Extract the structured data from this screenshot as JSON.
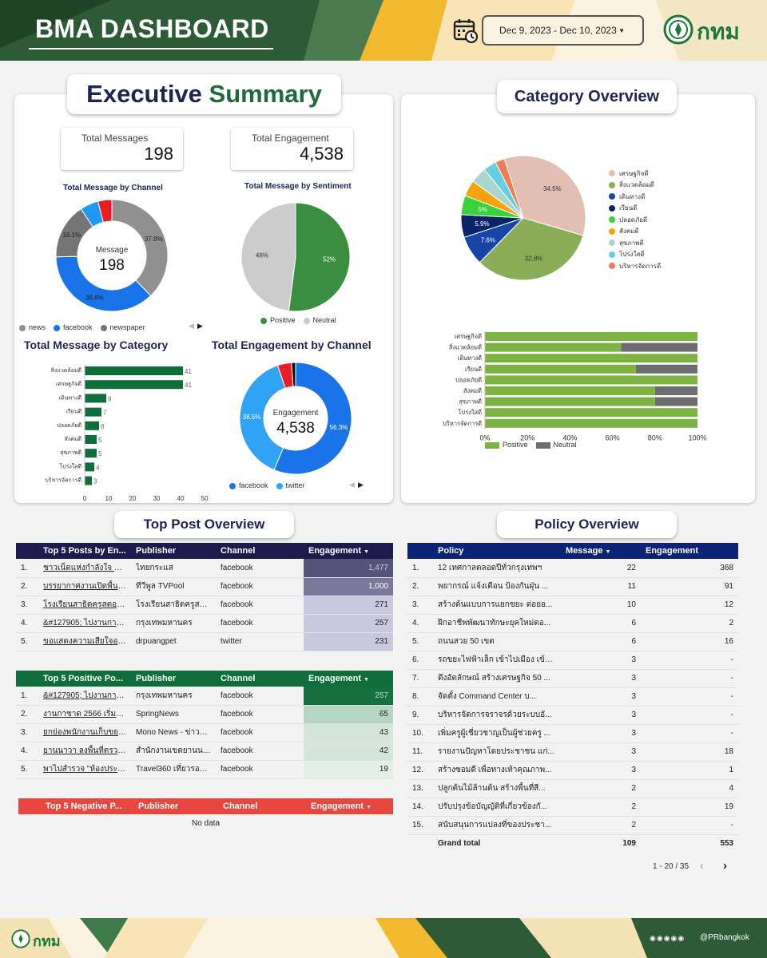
{
  "header": {
    "title": "BMA DASHBOARD",
    "date_range": "Dec 9, 2023 - Dec 10, 2023",
    "logo_text": "กทม"
  },
  "executive": {
    "title_1": "Executive",
    "title_2": "Summary",
    "total_messages_label": "Total Messages",
    "total_messages": "198",
    "total_engagement_label": "Total Engagement",
    "total_engagement": "4,538",
    "channel_chart": {
      "title": "Total Message by Channel",
      "center_label": "Message",
      "center_value": "198",
      "slices": [
        {
          "name": "newspaper",
          "percent": 37.8,
          "label": "37.8%",
          "color": "#909090"
        },
        {
          "name": "facebook",
          "percent": 36.8,
          "label": "36.8%",
          "color": "#1a73e8"
        },
        {
          "name": "news",
          "percent": 16.1,
          "label": "16.1%",
          "color": "#757575"
        },
        {
          "name": "other",
          "percent": 5.3,
          "label": "",
          "color": "#1e9af5"
        },
        {
          "name": "other2",
          "percent": 4.0,
          "label": "",
          "color": "#ea1c24"
        }
      ],
      "legend": [
        "news",
        "facebook",
        "newspaper"
      ]
    },
    "sentiment_chart": {
      "title": "Total Message by Sentiment",
      "slices": [
        {
          "name": "Positive",
          "percent": 52,
          "label": "52%",
          "color": "#3b8e3f"
        },
        {
          "name": "Neutral",
          "percent": 48,
          "label": "48%",
          "color": "#cccccc"
        }
      ],
      "legend": [
        "Positive",
        "Neutral"
      ]
    },
    "category_bar": {
      "title": "Total Message by Category",
      "categories": [
        "สิ่งแวดล้อมดี",
        "เศรษฐกิจดี",
        "เดินทางดี",
        "เรียนดี",
        "ปลอดภัยดี",
        "สังคมดี",
        "สุขภาพดี",
        "โปร่งใสดี",
        "บริหารจัดการดี"
      ],
      "values": [
        41,
        41,
        9,
        7,
        6,
        5,
        5,
        4,
        3
      ],
      "xticks": [
        "0",
        "10",
        "20",
        "30",
        "40",
        "50"
      ],
      "xmax": 50,
      "color": "#0f6e3a"
    },
    "engagement_chart": {
      "title": "Total Engagement by Channel",
      "center_label": "Engagement",
      "center_value": "4,538",
      "slices": [
        {
          "name": "facebook",
          "percent": 56.3,
          "label": "56.3%",
          "color": "#1a73e8"
        },
        {
          "name": "twitter",
          "percent": 38.5,
          "label": "38.5%",
          "color": "#31a3f5"
        },
        {
          "name": "other",
          "percent": 4.0,
          "label": "",
          "color": "#ea1c24"
        },
        {
          "name": "other2",
          "percent": 1.2,
          "label": "",
          "color": "#111111"
        }
      ],
      "legend": [
        "facebook",
        "twitter"
      ]
    }
  },
  "category_overview": {
    "title": "Category Overview",
    "pie": {
      "slices": [
        {
          "name": "เศรษฐกิจดี",
          "percent": 34.5,
          "label": "34.5%",
          "color": "#e1bfb2"
        },
        {
          "name": "สิ่งแวดล้อมดี",
          "percent": 32.8,
          "label": "32.8%",
          "color": "#8aad57"
        },
        {
          "name": "เดินทางดี",
          "percent": 7.6,
          "label": "7.6%",
          "color": "#1846a8"
        },
        {
          "name": "เรียนดี",
          "percent": 5.9,
          "label": "5.9%",
          "color": "#0b2468"
        },
        {
          "name": "ปลอดภัยดี",
          "percent": 5,
          "label": "5%",
          "color": "#3ad23a"
        },
        {
          "name": "สังคมดี",
          "percent": 4.2,
          "label": "",
          "color": "#f5a30f"
        },
        {
          "name": "สุขภาพดี",
          "percent": 4.2,
          "label": "",
          "color": "#a8d5cc"
        },
        {
          "name": "โปร่งใสดี",
          "percent": 3.4,
          "label": "",
          "color": "#67cde0"
        },
        {
          "name": "บริหารจัดการดี",
          "percent": 2.4,
          "label": "",
          "color": "#f07d55"
        }
      ]
    },
    "stacked": {
      "categories": [
        "เศรษฐกิจดี",
        "สิ่งแวดล้อมดี",
        "เดินทางดี",
        "เรียนดี",
        "ปลอดภัยดี",
        "สังคมดี",
        "สุขภาพดี",
        "โปร่งใสดี",
        "บริหารจัดการดี"
      ],
      "positive": [
        100,
        64,
        100,
        71,
        100,
        80,
        80,
        100,
        100
      ],
      "neutral": [
        0,
        36,
        0,
        29,
        0,
        20,
        20,
        0,
        0
      ],
      "xticks": [
        "0%",
        "20%",
        "40%",
        "60%",
        "80%",
        "100%"
      ],
      "legend": [
        "Positive",
        "Neutral"
      ],
      "colors": {
        "positive": "#7cb342",
        "neutral": "#6d6d6d"
      }
    }
  },
  "top_post": {
    "title": "Top Post Overview",
    "top5": {
      "headers": [
        "Top 5 Posts by En...",
        "Publisher",
        "Channel",
        "Engagement"
      ],
      "rows": [
        {
          "n": "1.",
          "post": "ชาวเน็ตแห่งกำลังใจ ชัชชา...",
          "publisher": "ไทยกระแส",
          "channel": "facebook",
          "eng": "1,477",
          "eng_value": 1477
        },
        {
          "n": "2.",
          "post": "บรรยากาศงานเปิดพื้นฐูคด...",
          "publisher": "ทีวีพูล TVPool",
          "channel": "facebook",
          "eng": "1,000",
          "eng_value": 1000
        },
        {
          "n": "3.",
          "post": "โรงเรียนสาธิตครูสตอคแวน...",
          "publisher": "โรงเรียนสาธิตครูสตอคแม...",
          "channel": "facebook",
          "eng": "271",
          "eng_value": 271
        },
        {
          "n": "4.",
          "post": "&#127905; ไปงานกาชาด...",
          "publisher": "กรุงเทพมหานคร",
          "channel": "facebook",
          "eng": "257",
          "eng_value": 257
        },
        {
          "n": "5.",
          "post": "ขอแสดงความเสียใจอย่างสุด...",
          "publisher": "drpuangpet",
          "channel": "twitter",
          "eng": "231",
          "eng_value": 231
        }
      ]
    },
    "positive": {
      "headers": [
        "Top 5 Positive Po...",
        "Publisher",
        "Channel",
        "Engagement"
      ],
      "rows": [
        {
          "n": "1.",
          "post": "&#127905; ไปงานกาชา...",
          "publisher": "กรุงเทพมหานคร",
          "channel": "facebook",
          "eng": "257",
          "eng_value": 257
        },
        {
          "n": "2.",
          "post": "งานกาชาด 2566 เริ่มแล้ว...",
          "publisher": "SpringNews",
          "channel": "facebook",
          "eng": "65",
          "eng_value": 65
        },
        {
          "n": "3.",
          "post": "ยกย่องพนักงานเก็บขยะ ปร...",
          "publisher": "Mono News - ข่าวโมโน",
          "channel": "facebook",
          "eng": "43",
          "eng_value": 43
        },
        {
          "n": "4.",
          "post": "ยานนาวา ลงพื้นที่ตรวจพ...",
          "publisher": "สำนักงานเขตยานนาวา",
          "channel": "facebook",
          "eng": "42",
          "eng_value": 42
        },
        {
          "n": "5.",
          "post": "พาไปสำรวจ \"ห้องประชุมม่ว...",
          "publisher": "Travel360 เที่ยวรอบทิศ",
          "channel": "facebook",
          "eng": "19",
          "eng_value": 19
        }
      ]
    },
    "negative": {
      "headers": [
        "Top 5 Negative P...",
        "Publisher",
        "Channel",
        "Engagement"
      ],
      "empty": "No data"
    }
  },
  "policy": {
    "title": "Policy Overview",
    "headers": [
      "Policy",
      "Message",
      "Engagement"
    ],
    "rows": [
      {
        "n": "1.",
        "policy": "12 เทศกาลตลอดปีทั่วกรุงเทพฯ",
        "msg": "22",
        "eng": "368"
      },
      {
        "n": "2.",
        "policy": "พยากรณ์ แจ้งเตือน ป้องกันฝุ่น ...",
        "msg": "11",
        "eng": "91"
      },
      {
        "n": "3.",
        "policy": "สร้างต้นแบบการแยกขยะ ต่อยอ...",
        "msg": "10",
        "eng": "12"
      },
      {
        "n": "4.",
        "policy": "ฝึกอาชีพพัฒนาทักษะยุคใหม่ตอ...",
        "msg": "6",
        "eng": "2"
      },
      {
        "n": "5.",
        "policy": "ถนนสวย 50 เขต",
        "msg": "6",
        "eng": "16"
      },
      {
        "n": "6.",
        "policy": "รถขยะไฟฟ้าเล็ก เข้าไปเมือง เข้าถึ...",
        "msg": "3",
        "eng": "-"
      },
      {
        "n": "7.",
        "policy": "ดึงอัตลักษณ์ สร้างเศรษฐกิจ 50 ...",
        "msg": "3",
        "eng": "-"
      },
      {
        "n": "8.",
        "policy": "จัดตั้ง Command Center บ...",
        "msg": "3",
        "eng": "-"
      },
      {
        "n": "9.",
        "policy": "บริหารจัดการจราจรด้วยระบบอั...",
        "msg": "3",
        "eng": "-"
      },
      {
        "n": "10.",
        "policy": "เพิ่มครูผู้เชี่ยวชาญเป็นผู้ช่วยครู ...",
        "msg": "3",
        "eng": "-"
      },
      {
        "n": "11.",
        "policy": "รายงานปัญหาโดยประชาชน แก่...",
        "msg": "3",
        "eng": "18"
      },
      {
        "n": "12.",
        "policy": "สร้างซอมดี เพื่อทางเท้าคุณภาพ...",
        "msg": "3",
        "eng": "1"
      },
      {
        "n": "13.",
        "policy": "ปลูกต้นไม้ล้านต้น สร้างพื้นที่สี...",
        "msg": "2",
        "eng": "4"
      },
      {
        "n": "14.",
        "policy": "ปรับปรุงข้อบัญญัติที่เกี่ยวข้องกั...",
        "msg": "2",
        "eng": "19"
      },
      {
        "n": "15.",
        "policy": "สนับสนุนการแปลงที่ของประชา...",
        "msg": "2",
        "eng": "-"
      }
    ],
    "grand_total_label": "Grand total",
    "grand_total_msg": "109",
    "grand_total_eng": "553",
    "pagination": "1 - 20 / 35"
  },
  "footer": {
    "logo_text": "กทม",
    "handle": "@PRbangkok"
  },
  "colors": {
    "dark_green": "#2c5b35",
    "navy": "#1e2454",
    "table_navy": "#1f1a4e",
    "policy_navy": "#0b2377",
    "table_green": "#0f6e3a",
    "table_red": "#e8473f"
  }
}
